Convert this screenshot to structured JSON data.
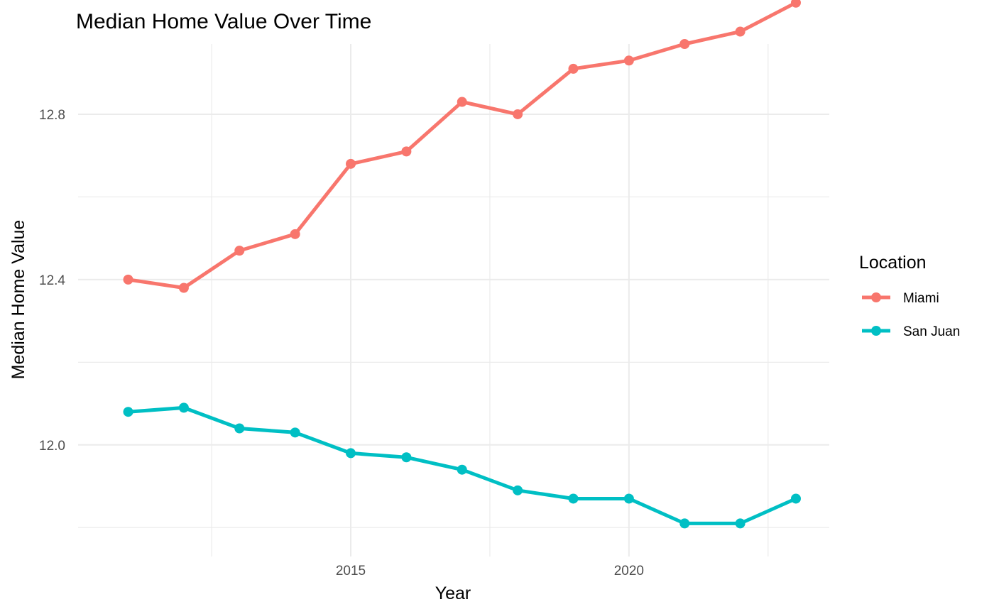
{
  "chart_data": {
    "type": "line",
    "title": "Median Home Value Over Time",
    "xlabel": "Year",
    "ylabel": "Median Home Value",
    "x": [
      2011,
      2012,
      2013,
      2014,
      2015,
      2016,
      2017,
      2018,
      2019,
      2020,
      2021,
      2022,
      2023
    ],
    "xlim": [
      2010.1,
      2023.6
    ],
    "ylim": [
      11.73,
      12.97
    ],
    "x_ticks": [
      2015,
      2020
    ],
    "x_tick_labels": [
      "2015",
      "2020"
    ],
    "y_ticks": [
      12.0,
      12.4,
      12.8
    ],
    "y_tick_labels": [
      "12.0",
      "12.4",
      "12.8"
    ],
    "x_minor_ticks": [
      2012.5,
      2017.5,
      2022.5
    ],
    "y_minor_ticks": [
      11.8,
      12.2,
      12.6,
      13.0
    ],
    "grid": true,
    "legend": {
      "title": "Location",
      "position": "right"
    },
    "series": [
      {
        "name": "Miami",
        "color": "#F8766D",
        "values": [
          12.4,
          12.38,
          12.47,
          12.51,
          12.68,
          12.71,
          12.83,
          12.8,
          12.91,
          12.93,
          12.97,
          13.0,
          13.07
        ]
      },
      {
        "name": "San Juan",
        "color": "#00BFC4",
        "values": [
          12.08,
          12.09,
          12.04,
          12.03,
          11.98,
          11.97,
          11.94,
          11.89,
          11.87,
          11.87,
          11.81,
          11.81,
          11.87
        ]
      }
    ]
  }
}
